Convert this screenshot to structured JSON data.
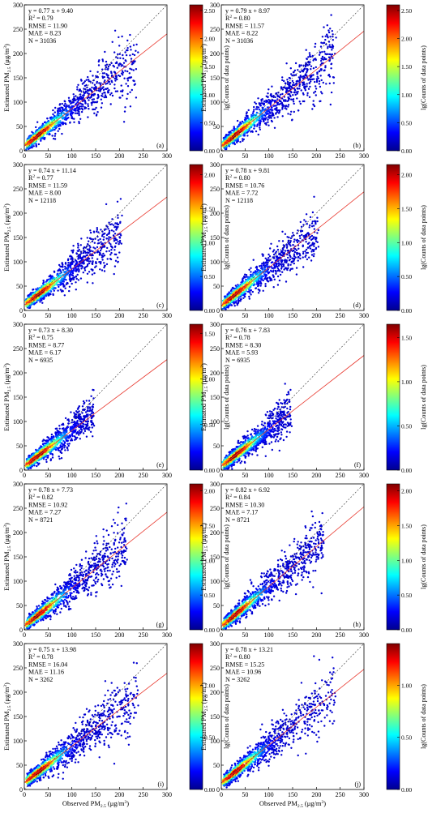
{
  "figure": {
    "x_axis_label": "Observed PM",
    "x_axis_unit": "(μg/m",
    "y_axis_label": "Estimated PM",
    "y_axis_unit": "(μg/m",
    "colorbar_label": "lg(Counts of data points)",
    "stats_labels": {
      "r2": "R",
      "rmse": "RMSE = ",
      "mae": "MAE = ",
      "n": "N = "
    }
  },
  "chart_data": [
    {
      "type": "scatter",
      "panel": "(a)",
      "slope": 0.77,
      "intercept": 9.4,
      "r2": "0.79",
      "rmse": "11.90",
      "mae": "8.23",
      "n": "31036",
      "spread": 1.0,
      "xlim": [
        0,
        300
      ],
      "ylim": [
        0,
        300
      ],
      "x_ticks": [
        0,
        50,
        100,
        150,
        200,
        250,
        300
      ],
      "y_ticks": [
        0,
        50,
        100,
        150,
        200,
        250,
        300
      ],
      "colorbar": {
        "ticks": [
          "0.00",
          "0.50",
          "1.00",
          "1.50",
          "2.00",
          "2.50"
        ],
        "max": 2.6
      }
    },
    {
      "type": "scatter",
      "panel": "(b)",
      "slope": 0.79,
      "intercept": 8.97,
      "r2": "0.80",
      "rmse": "11.57",
      "mae": "8.22",
      "n": "31036",
      "spread": 1.0,
      "xlim": [
        0,
        300
      ],
      "ylim": [
        0,
        300
      ],
      "x_ticks": [
        0,
        50,
        100,
        150,
        200,
        250,
        300
      ],
      "y_ticks": [
        0,
        50,
        100,
        150,
        200,
        250,
        300
      ],
      "colorbar": {
        "ticks": [
          "0.00",
          "0.50",
          "1.00",
          "1.50",
          "2.00",
          "2.50"
        ],
        "max": 2.6
      }
    },
    {
      "type": "scatter",
      "panel": "(c)",
      "slope": 0.74,
      "intercept": 11.14,
      "r2": "0.77",
      "rmse": "11.59",
      "mae": "8.00",
      "n": "12118",
      "spread": 0.85,
      "xlim": [
        0,
        300
      ],
      "ylim": [
        0,
        300
      ],
      "x_ticks": [
        0,
        50,
        100,
        150,
        200,
        250,
        300
      ],
      "y_ticks": [
        0,
        50,
        100,
        150,
        200,
        250,
        300
      ],
      "colorbar": {
        "ticks": [
          "0.00",
          "0.50",
          "1.00",
          "1.50",
          "2.00"
        ],
        "max": 2.15
      }
    },
    {
      "type": "scatter",
      "panel": "(d)",
      "slope": 0.78,
      "intercept": 9.81,
      "r2": "0.80",
      "rmse": "10.76",
      "mae": "7.72",
      "n": "12118",
      "spread": 0.85,
      "xlim": [
        0,
        300
      ],
      "ylim": [
        0,
        300
      ],
      "x_ticks": [
        0,
        50,
        100,
        150,
        200,
        250,
        300
      ],
      "y_ticks": [
        0,
        50,
        100,
        150,
        200,
        250,
        300
      ],
      "colorbar": {
        "ticks": [
          "0.00",
          "0.50",
          "1.00",
          "1.50",
          "2.00"
        ],
        "max": 2.15
      }
    },
    {
      "type": "scatter",
      "panel": "(e)",
      "slope": 0.73,
      "intercept": 8.3,
      "r2": "0.75",
      "rmse": "8.77",
      "mae": "6.17",
      "n": "6935",
      "spread": 0.6,
      "xlim": [
        0,
        300
      ],
      "ylim": [
        0,
        300
      ],
      "x_ticks": [
        0,
        50,
        100,
        150,
        200,
        250,
        300
      ],
      "y_ticks": [
        0,
        50,
        100,
        150,
        200,
        250,
        300
      ],
      "colorbar": {
        "ticks": [
          "0.00",
          "0.50",
          "1.00",
          "1.50"
        ],
        "max": 1.6
      }
    },
    {
      "type": "scatter",
      "panel": "(f)",
      "slope": 0.76,
      "intercept": 7.83,
      "r2": "0.78",
      "rmse": "8.30",
      "mae": "5.93",
      "n": "6935",
      "spread": 0.6,
      "xlim": [
        0,
        300
      ],
      "ylim": [
        0,
        300
      ],
      "x_ticks": [
        0,
        50,
        100,
        150,
        200,
        250,
        300
      ],
      "y_ticks": [
        0,
        50,
        100,
        150,
        200,
        250,
        300
      ],
      "colorbar": {
        "ticks": [
          "0.00",
          "0.50",
          "1.00",
          "1.50"
        ],
        "max": 1.65
      }
    },
    {
      "type": "scatter",
      "panel": "(g)",
      "slope": 0.78,
      "intercept": 7.73,
      "r2": "0.82",
      "rmse": "10.92",
      "mae": "7.27",
      "n": "8721",
      "spread": 0.9,
      "xlim": [
        0,
        300
      ],
      "ylim": [
        0,
        300
      ],
      "x_ticks": [
        0,
        50,
        100,
        150,
        200,
        250,
        300
      ],
      "y_ticks": [
        0,
        50,
        100,
        150,
        200,
        250,
        300
      ],
      "colorbar": {
        "ticks": [
          "0.00",
          "0.50",
          "1.00",
          "1.50",
          "2.00"
        ],
        "max": 2.1
      }
    },
    {
      "type": "scatter",
      "panel": "(h)",
      "slope": 0.82,
      "intercept": 6.92,
      "r2": "0.84",
      "rmse": "10.30",
      "mae": "7.17",
      "n": "8721",
      "spread": 0.9,
      "xlim": [
        0,
        300
      ],
      "ylim": [
        0,
        300
      ],
      "x_ticks": [
        0,
        50,
        100,
        150,
        200,
        250,
        300
      ],
      "y_ticks": [
        0,
        50,
        100,
        150,
        200,
        250,
        300
      ],
      "colorbar": {
        "ticks": [
          "0.00",
          "0.50",
          "1.00",
          "1.50",
          "2.00"
        ],
        "max": 2.1
      }
    },
    {
      "type": "scatter",
      "panel": "(i)",
      "slope": 0.75,
      "intercept": 13.98,
      "r2": "0.78",
      "rmse": "16.04",
      "mae": "11.16",
      "n": "3262",
      "spread": 1.0,
      "xlim": [
        0,
        300
      ],
      "ylim": [
        0,
        300
      ],
      "x_ticks": [
        0,
        50,
        100,
        150,
        200,
        250,
        300
      ],
      "y_ticks": [
        0,
        50,
        100,
        150,
        200,
        250,
        300
      ],
      "colorbar": {
        "ticks": [
          "0.00",
          "0.50",
          "1.00"
        ],
        "max": 1.4
      }
    },
    {
      "type": "scatter",
      "panel": "(j)",
      "slope": 0.78,
      "intercept": 13.21,
      "r2": "0.80",
      "rmse": "15.25",
      "mae": "10.96",
      "n": "3262",
      "spread": 1.0,
      "xlim": [
        0,
        300
      ],
      "ylim": [
        0,
        300
      ],
      "x_ticks": [
        0,
        50,
        100,
        150,
        200,
        250,
        300
      ],
      "y_ticks": [
        0,
        50,
        100,
        150,
        200,
        250,
        300
      ],
      "colorbar": {
        "ticks": [
          "0.00",
          "0.50",
          "1.00"
        ],
        "max": 1.4
      }
    }
  ]
}
